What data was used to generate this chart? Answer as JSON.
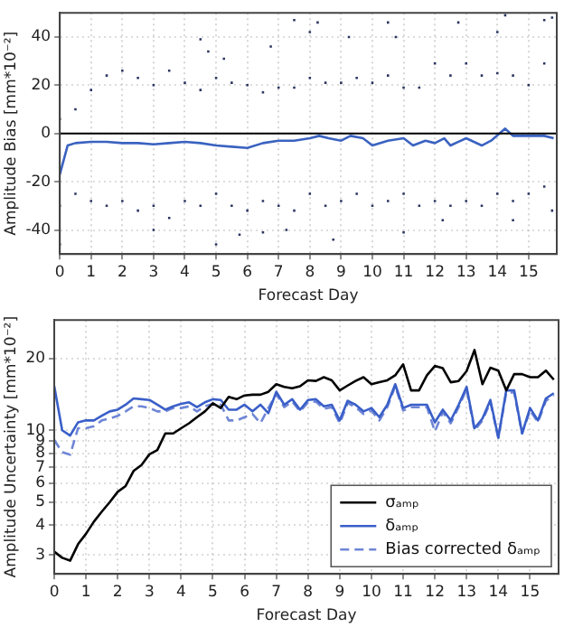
{
  "chart_data": [
    {
      "type": "scatter",
      "xlabel": "Forecast Day",
      "ylabel": "Amplitude Bias [mm*10⁻²]",
      "xlim": [
        0,
        15.9
      ],
      "xticks": [
        0,
        1,
        2,
        3,
        4,
        5,
        6,
        7,
        8,
        9,
        10,
        11,
        12,
        13,
        14,
        15
      ],
      "ylim": [
        -50,
        50
      ],
      "yticks": [
        -40,
        -20,
        0,
        20,
        40
      ],
      "grid": true,
      "ref_lines": [
        {
          "axis": "y",
          "value": 0,
          "color": "#000000"
        }
      ],
      "series": [
        {
          "type": "scatter",
          "marker": "square",
          "color": "#2a3560",
          "x": [
            0,
            0.5,
            1,
            1.5,
            2,
            2.5,
            3,
            3.5,
            4,
            4.5,
            5,
            5.5,
            6,
            6.5,
            7,
            7.5,
            8,
            8.5,
            9,
            9.5,
            10,
            10.5,
            11,
            11.5,
            12,
            12.5,
            13,
            13.5,
            14,
            14.5,
            15,
            15.5,
            0,
            0.5,
            1,
            1.5,
            2,
            2.5,
            3,
            3.5,
            4,
            4.5,
            5,
            5.5,
            6,
            6.5,
            7,
            7.5,
            8,
            8.5,
            9,
            9.5,
            10,
            10.5,
            11,
            11.5,
            12,
            12.5,
            13,
            13.5,
            14,
            14.5,
            15,
            15.5,
            0,
            4.5,
            4.75,
            5.25,
            5,
            7.5,
            8,
            8.25,
            7.25,
            8.75,
            10.5,
            10.75,
            12.75,
            14.25,
            14,
            14.5,
            15.5,
            15.75,
            15.75,
            11,
            12.25,
            5.75,
            3,
            6.75,
            9.25,
            6.5
          ],
          "values": [
            6,
            10,
            18,
            24,
            26,
            23,
            20,
            26,
            21,
            18,
            23,
            21,
            20,
            17,
            19,
            19,
            23,
            21,
            21,
            23,
            21,
            24,
            19,
            19,
            29,
            24,
            29,
            24,
            25,
            24,
            20,
            29,
            -30,
            -25,
            -28,
            -30,
            -28,
            -32,
            -30,
            -35,
            -28,
            -30,
            -25,
            -30,
            -32,
            -28,
            -30,
            -32,
            -25,
            -30,
            -28,
            -25,
            -30,
            -28,
            -25,
            -30,
            -28,
            -30,
            -28,
            -30,
            -25,
            -28,
            -25,
            -22,
            -46,
            39,
            34,
            31,
            -46,
            47,
            42,
            46,
            -40,
            -44,
            46,
            40,
            46,
            49,
            42,
            -36,
            47,
            48,
            -32,
            -41,
            -36,
            -42,
            -40,
            36,
            40,
            -41
          ]
        },
        {
          "type": "line",
          "marker": "none",
          "color": "#3a62c0",
          "x": [
            0,
            0.25,
            0.5,
            1,
            1.5,
            2,
            2.5,
            3,
            3.5,
            4,
            4.5,
            5,
            5.5,
            6,
            6.5,
            7,
            7.5,
            8,
            8.3,
            8.6,
            9,
            9.3,
            9.7,
            10,
            10.5,
            11,
            11.3,
            11.7,
            12,
            12.3,
            12.5,
            13,
            13.5,
            13.8,
            14.25,
            14.5,
            15,
            15.5,
            15.8
          ],
          "values": [
            -17,
            -5,
            -4,
            -3.5,
            -3.5,
            -4,
            -4,
            -4.5,
            -4,
            -3.5,
            -4,
            -5,
            -5.5,
            -6,
            -4,
            -3,
            -3,
            -2,
            -1,
            -2,
            -3,
            -1,
            -2,
            -5,
            -3,
            -2,
            -5,
            -3,
            -4,
            -2,
            -5,
            -2,
            -5,
            -3,
            2,
            -1,
            -1,
            -1,
            -2
          ]
        }
      ]
    },
    {
      "type": "line",
      "xlabel": "Forecast Day",
      "ylabel": "Amplitude Uncertainty [mm*10⁻²]",
      "log": "y",
      "xlim": [
        0,
        15.9
      ],
      "xticks": [
        0,
        1,
        2,
        3,
        4,
        5,
        6,
        7,
        8,
        9,
        10,
        11,
        12,
        13,
        14,
        15
      ],
      "ylim": [
        2.5,
        29
      ],
      "yticks": [
        3,
        4,
        5,
        6,
        7,
        8,
        9,
        10,
        20
      ],
      "grid": true,
      "legend": "bottom right",
      "marker": "none",
      "x": [
        0,
        0.25,
        0.5,
        0.75,
        1,
        1.25,
        1.5,
        1.75,
        2,
        2.25,
        2.5,
        2.75,
        3,
        3.25,
        3.5,
        3.75,
        4,
        4.25,
        4.5,
        4.75,
        5,
        5.25,
        5.5,
        5.75,
        6,
        6.25,
        6.5,
        6.75,
        7,
        7.25,
        7.5,
        7.75,
        8,
        8.25,
        8.5,
        8.75,
        9,
        9.25,
        9.5,
        9.75,
        10,
        10.25,
        10.5,
        10.75,
        11,
        11.25,
        11.5,
        11.75,
        12,
        12.25,
        12.5,
        12.75,
        13,
        13.25,
        13.5,
        13.75,
        14,
        14.25,
        14.5,
        14.75,
        15,
        15.25,
        15.5,
        15.75
      ],
      "series": [
        {
          "name": "σₐₘₚ",
          "color": "#000000",
          "line_style": "solid",
          "values": [
            3.1,
            2.92,
            2.84,
            3.33,
            3.68,
            4.14,
            4.56,
            5.0,
            5.52,
            5.84,
            6.75,
            7.15,
            7.93,
            8.26,
            9.7,
            9.7,
            10.2,
            10.7,
            11.35,
            12.0,
            12.97,
            12.4,
            13.8,
            13.5,
            14.0,
            14.1,
            14.1,
            14.5,
            15.6,
            15.2,
            15.0,
            15.3,
            16.2,
            16.1,
            16.7,
            16.2,
            14.7,
            15.4,
            16.1,
            16.7,
            15.6,
            15.9,
            16.2,
            17.0,
            18.9,
            14.7,
            14.7,
            17.0,
            18.6,
            18.2,
            15.9,
            16.1,
            17.7,
            21.7,
            15.6,
            18.3,
            17.8,
            14.7,
            17.2,
            17.2,
            16.7,
            16.7,
            17.8,
            16.3
          ]
        },
        {
          "name": "δₐₘₚ",
          "color": "#3a5fc8",
          "line_style": "solid",
          "values": [
            15.3,
            10.0,
            9.5,
            10.8,
            11.0,
            11.0,
            11.5,
            12.0,
            12.2,
            12.8,
            13.6,
            13.5,
            13.4,
            12.8,
            12.2,
            12.6,
            12.9,
            13.1,
            12.5,
            13.1,
            13.5,
            13.4,
            12.2,
            12.2,
            12.8,
            12.0,
            12.8,
            11.8,
            14.5,
            12.8,
            13.5,
            12.2,
            13.4,
            13.5,
            12.6,
            12.8,
            11.0,
            13.3,
            12.8,
            12.0,
            12.4,
            11.35,
            12.8,
            15.6,
            12.4,
            12.8,
            12.8,
            12.8,
            10.8,
            12.2,
            11.0,
            12.8,
            15.2,
            10.2,
            11.2,
            13.4,
            9.3,
            14.7,
            14.7,
            9.7,
            12.4,
            11.0,
            13.6,
            14.3
          ]
        },
        {
          "name": "Bias corrected δₐₘₚ",
          "color": "#6f86d6",
          "line_style": "dashed",
          "values": [
            9.1,
            8.1,
            7.9,
            10.2,
            10.2,
            10.4,
            11.0,
            11.2,
            11.5,
            12.0,
            12.6,
            12.6,
            12.4,
            12.0,
            12.0,
            12.4,
            12.4,
            12.6,
            12.0,
            12.6,
            12.9,
            12.8,
            11.0,
            11.0,
            11.35,
            11.7,
            10.7,
            12.4,
            14.2,
            12.5,
            13.2,
            12.0,
            13.1,
            13.2,
            12.3,
            12.5,
            10.7,
            13.0,
            12.5,
            11.7,
            12.1,
            11.0,
            12.5,
            15.3,
            12.1,
            12.5,
            12.5,
            12.5,
            9.9,
            11.9,
            10.7,
            12.5,
            14.9,
            10.0,
            11.0,
            13.1,
            9.3,
            14.4,
            14.4,
            9.7,
            12.1,
            10.8,
            13.3,
            14.0
          ]
        }
      ]
    }
  ]
}
